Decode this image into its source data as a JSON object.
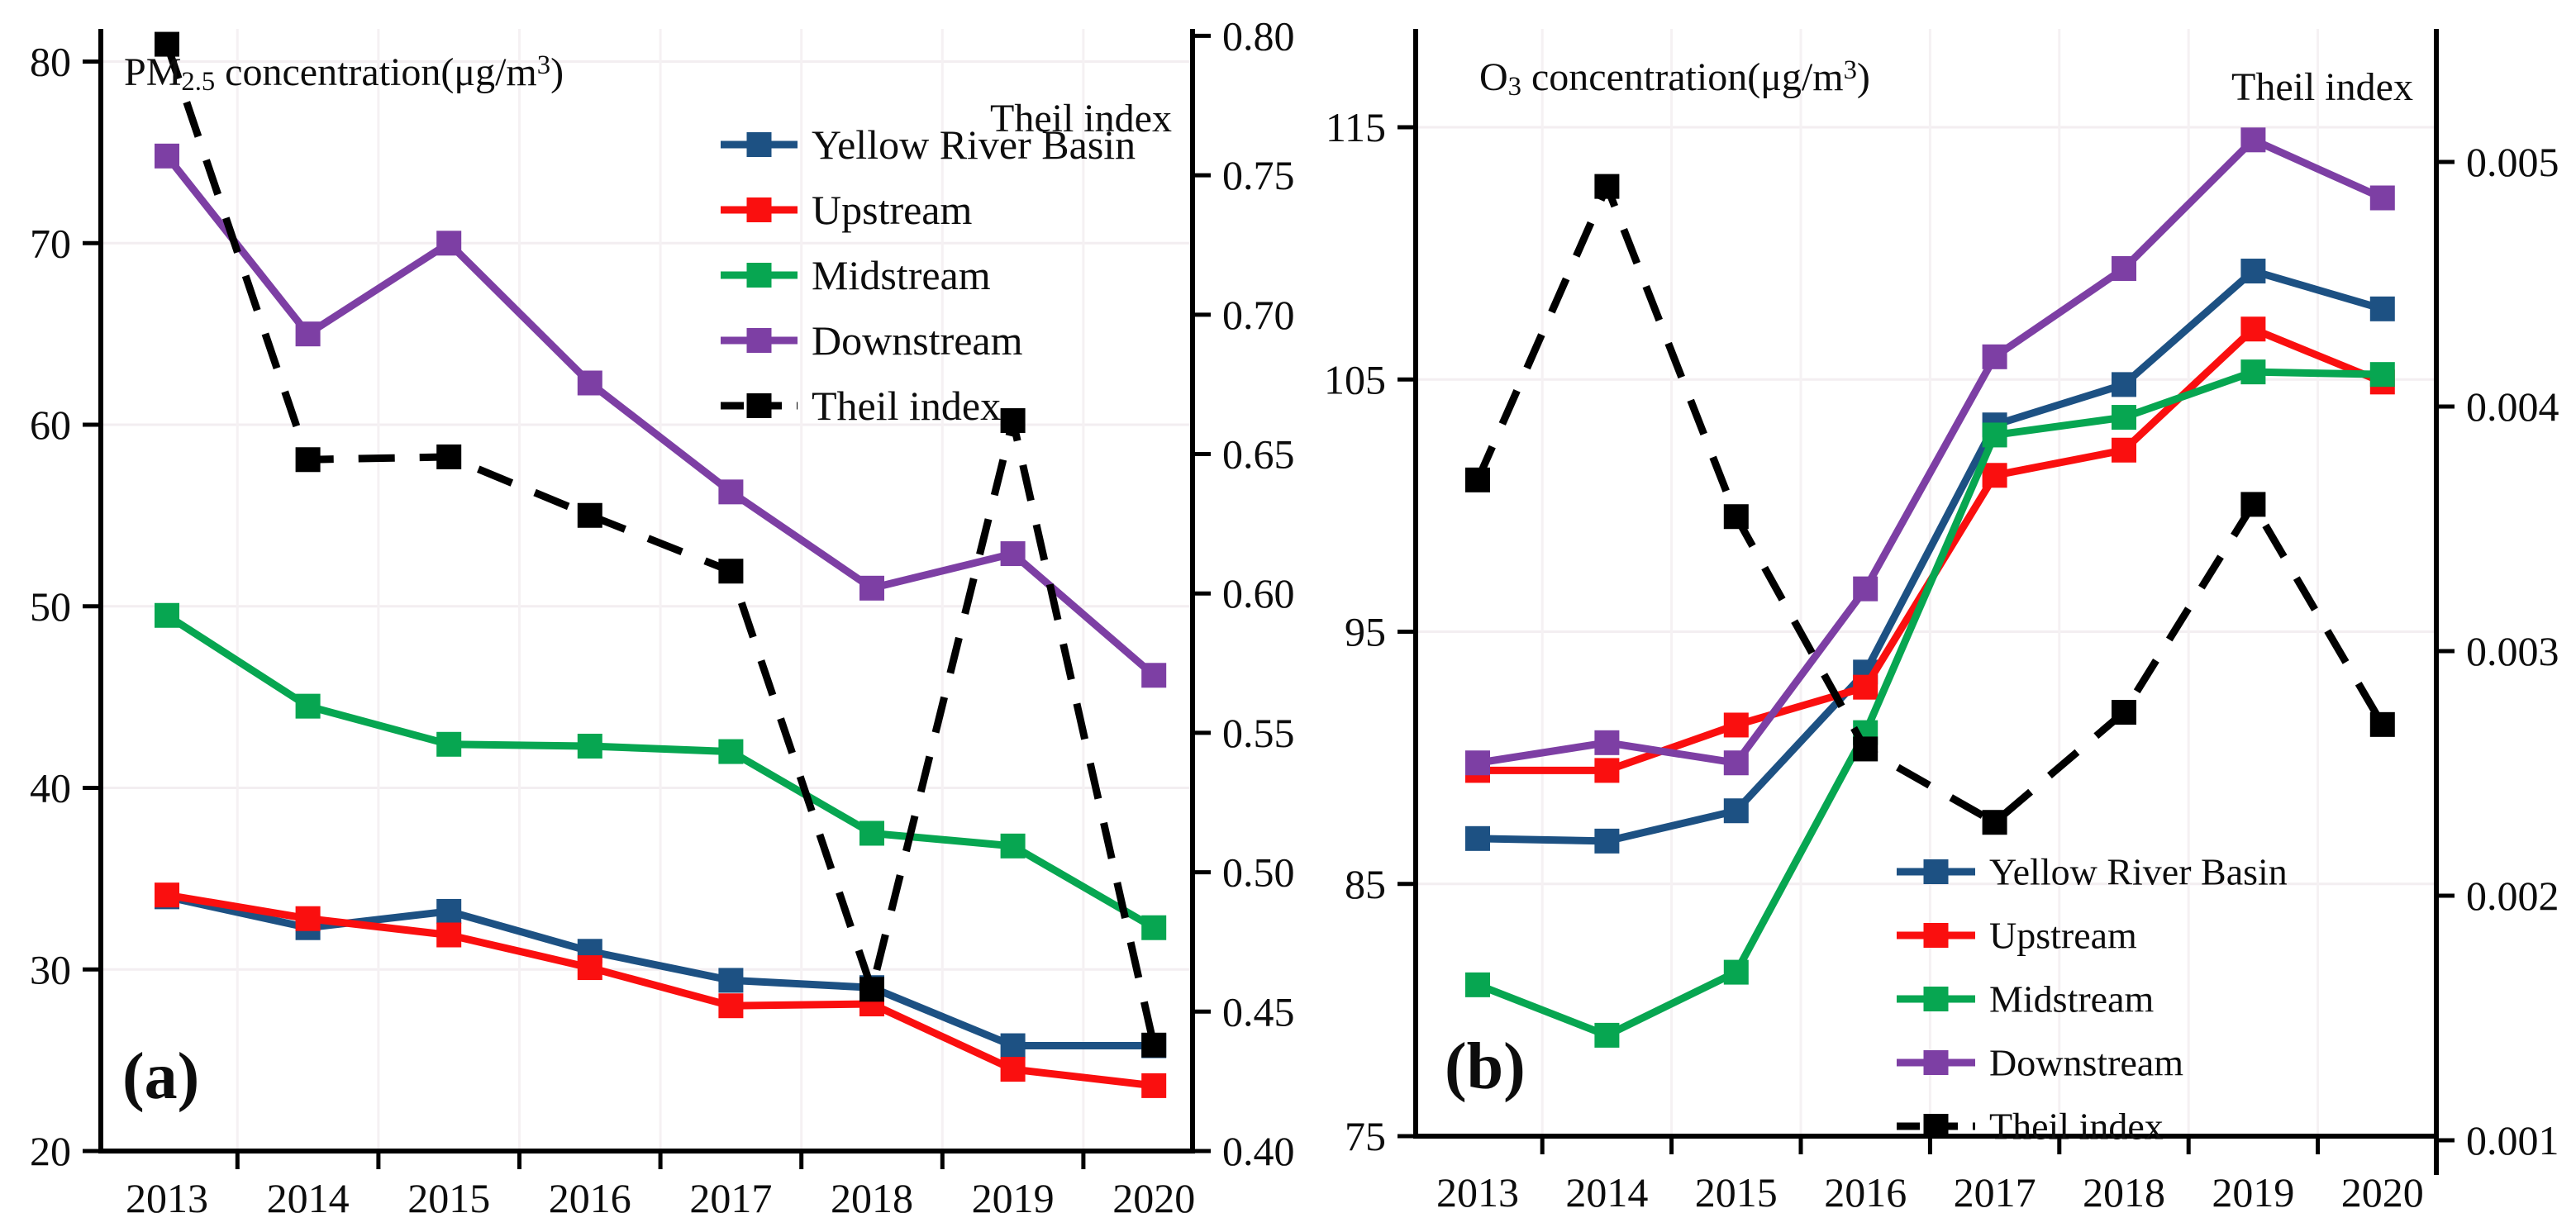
{
  "figure": {
    "background": "#ffffff",
    "description": "Dual-panel dual-axis line chart of pollutant concentrations and Theil index in the Yellow River Basin, 2013-2020",
    "grid": true
  },
  "chart_data": [
    {
      "type": "line",
      "panel": "a",
      "corner_label": "(a)",
      "title_parts": {
        "prefix": "PM",
        "sub": "2.5",
        "mid": " concentration(μg/m",
        "sup": "3",
        "suffix": ")"
      },
      "right_axis_label": "Theil index",
      "legend_position": "upper-right-inside",
      "categories": [
        "2013",
        "2014",
        "2015",
        "2016",
        "2017",
        "2018",
        "2019",
        "2020"
      ],
      "left_axis": {
        "ticks": [
          "20",
          "30",
          "40",
          "50",
          "60",
          "70",
          "80"
        ],
        "range": [
          20,
          81.8
        ]
      },
      "right_axis": {
        "ticks": [
          "0.40",
          "0.45",
          "0.50",
          "0.55",
          "0.60",
          "0.65",
          "0.70",
          "0.75",
          "0.80"
        ],
        "range": [
          0.4,
          0.8025
        ]
      },
      "series": [
        {
          "name": "Yellow River Basin",
          "color": "#1d5183",
          "axis": "left",
          "dashed": false,
          "values": [
            34.0,
            32.3,
            33.2,
            31.0,
            29.4,
            29.0,
            25.8,
            25.8
          ]
        },
        {
          "name": "Upstream",
          "color": "#fa0f0f",
          "axis": "left",
          "dashed": false,
          "values": [
            34.1,
            32.8,
            31.9,
            30.1,
            28.0,
            28.1,
            24.5,
            23.6
          ]
        },
        {
          "name": "Midstream",
          "color": "#07a651",
          "axis": "left",
          "dashed": false,
          "values": [
            49.5,
            44.5,
            42.4,
            42.3,
            42.0,
            37.5,
            36.8,
            32.3
          ]
        },
        {
          "name": "Downstream",
          "color": "#7d3fa4",
          "axis": "left",
          "dashed": false,
          "values": [
            74.8,
            65.0,
            70.0,
            62.3,
            56.3,
            51.0,
            52.9,
            46.2
          ]
        },
        {
          "name": "Theil index",
          "color": "#000000",
          "axis": "right",
          "dashed": true,
          "values": [
            0.797,
            0.648,
            0.649,
            0.628,
            0.608,
            0.458,
            0.662,
            0.438
          ]
        }
      ]
    },
    {
      "type": "line",
      "panel": "b",
      "corner_label": "(b)",
      "title_parts": {
        "prefix": "O",
        "sub": "3",
        "mid": " concentration(μg/m",
        "sup": "3",
        "suffix": ")"
      },
      "right_axis_label": "Theil index",
      "legend_position": "lower-right-inside",
      "categories": [
        "2013",
        "2014",
        "2015",
        "2016",
        "2017",
        "2018",
        "2019",
        "2020"
      ],
      "left_axis": {
        "ticks": [
          "75",
          "85",
          "95",
          "105",
          "115"
        ],
        "range": [
          75,
          118.9
        ]
      },
      "right_axis": {
        "ticks": [
          "0.001",
          "0.002",
          "0.003",
          "0.004",
          "0.005"
        ],
        "range": [
          0.001017,
          0.005544
        ]
      },
      "series": [
        {
          "name": "Yellow River Basin",
          "color": "#1d5183",
          "axis": "left",
          "dashed": false,
          "values": [
            86.8,
            86.7,
            87.9,
            93.4,
            103.2,
            104.8,
            109.3,
            107.8
          ]
        },
        {
          "name": "Upstream",
          "color": "#fa0f0f",
          "axis": "left",
          "dashed": false,
          "values": [
            89.5,
            89.5,
            91.3,
            92.8,
            101.2,
            102.2,
            107.0,
            104.9
          ]
        },
        {
          "name": "Midstream",
          "color": "#07a651",
          "axis": "left",
          "dashed": false,
          "values": [
            81.0,
            79.0,
            81.5,
            91.0,
            102.8,
            103.5,
            105.3,
            105.2
          ]
        },
        {
          "name": "Downstream",
          "color": "#7d3fa4",
          "axis": "left",
          "dashed": false,
          "values": [
            89.8,
            90.6,
            89.8,
            96.7,
            105.9,
            109.4,
            114.5,
            112.2
          ]
        },
        {
          "name": "Theil index",
          "color": "#000000",
          "axis": "right",
          "dashed": true,
          "values": [
            0.0037,
            0.0049,
            0.00355,
            0.0026,
            0.0023,
            0.00275,
            0.0036,
            0.0027
          ]
        }
      ]
    }
  ]
}
